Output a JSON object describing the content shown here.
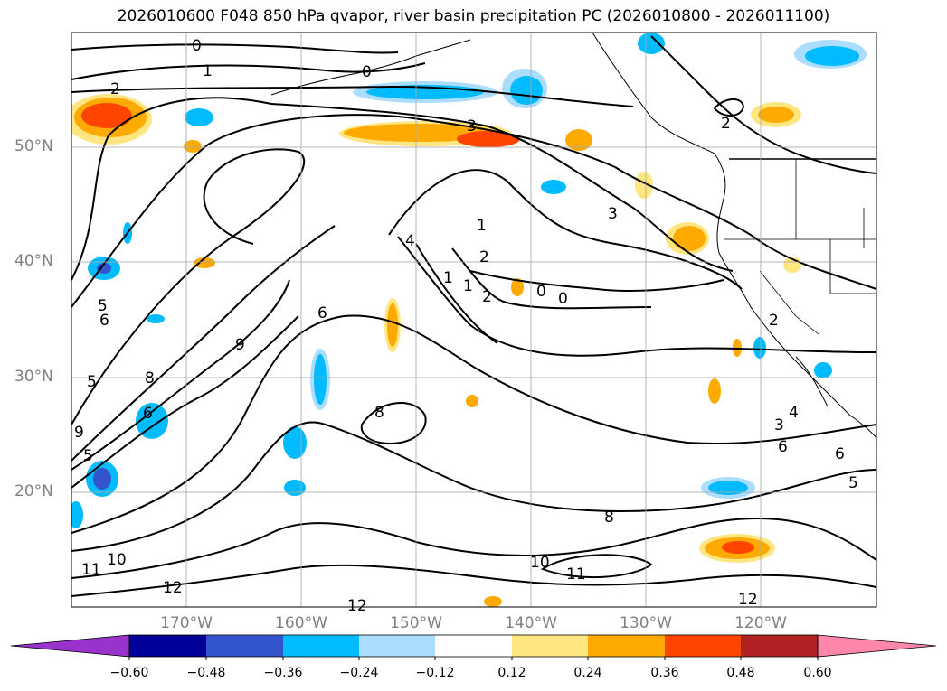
{
  "title": "2026010600 F048 850 hPa qvapor, river basin precipitation PC (2026010800 - 2026011100)",
  "lat_labels": [
    "50°N",
    "40°N",
    "30°N",
    "20°N"
  ],
  "lon_labels": [
    "170°W",
    "160°W",
    "150°W",
    "140°W",
    "130°W",
    "120°W"
  ],
  "colorbar": {
    "ticks": [
      "−0.60",
      "−0.48",
      "−0.36",
      "−0.24",
      "−0.12",
      "0.12",
      "0.24",
      "0.36",
      "0.48",
      "0.60"
    ],
    "colors": [
      "#9933cc",
      "#000099",
      "#3355cc",
      "#00bbff",
      "#aaddff",
      "#ffffff",
      "#ffe680",
      "#ffaa00",
      "#ff4400",
      "#b22222",
      "#ff88aa"
    ]
  },
  "contour_labels": [
    "0",
    "1",
    "2",
    "0",
    "2",
    "3",
    "1",
    "2",
    "3",
    "4",
    "1",
    "1",
    "2",
    "0",
    "0",
    "2",
    "5",
    "6",
    "6",
    "9",
    "5",
    "8",
    "9",
    "6",
    "8",
    "5",
    "3",
    "4",
    "6",
    "6",
    "5",
    "8",
    "10",
    "11",
    "11",
    "10",
    "12",
    "12",
    "12"
  ]
}
